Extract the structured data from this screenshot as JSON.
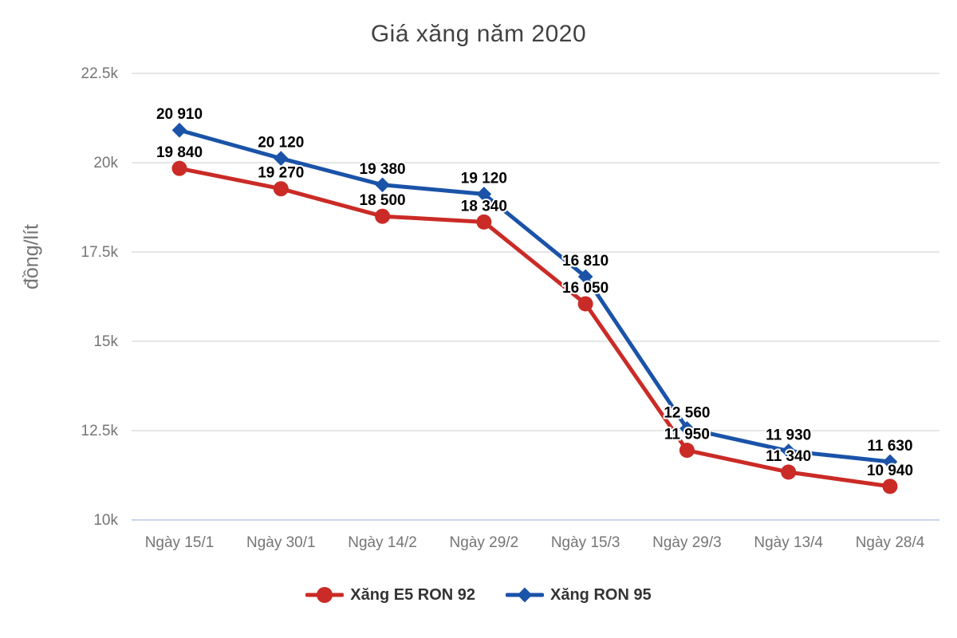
{
  "chart_data": {
    "type": "line",
    "title": "Giá xăng năm 2020",
    "xlabel": "",
    "ylabel": "đồng/lít",
    "categories": [
      "Ngày 15/1",
      "Ngày 30/1",
      "Ngày 14/2",
      "Ngày 29/2",
      "Ngày 15/3",
      "Ngày 29/3",
      "Ngày 13/4",
      "Ngày 28/4"
    ],
    "series": [
      {
        "name": "Xăng E5 RON 92",
        "color": "#ca2b26",
        "marker": "circle",
        "values": [
          19840,
          19270,
          18500,
          18340,
          16050,
          11950,
          11340,
          10940
        ]
      },
      {
        "name": "Xăng RON 95",
        "color": "#1a53a8",
        "marker": "diamond",
        "values": [
          20910,
          20120,
          19380,
          19120,
          16810,
          12560,
          11930,
          11630
        ]
      }
    ],
    "y_ticks": [
      {
        "value": 10000,
        "label": "10k"
      },
      {
        "value": 12500,
        "label": "12.5k"
      },
      {
        "value": 15000,
        "label": "15k"
      },
      {
        "value": 17500,
        "label": "17.5k"
      },
      {
        "value": 20000,
        "label": "20k"
      },
      {
        "value": 22500,
        "label": "22.5k"
      }
    ],
    "ylim": [
      10000,
      22500
    ],
    "grid": true,
    "legend_position": "bottom",
    "data_label_thousands_separator": " ",
    "colors": {
      "background": "#ffffff",
      "grid": "#e6e6e6",
      "baseline_grid": "#c8d6ec",
      "axis_text": "#757575",
      "title_text": "#424242",
      "data_label_text": "#000000",
      "data_label_halo": "#ffffff",
      "legend_text": "#333333"
    }
  }
}
